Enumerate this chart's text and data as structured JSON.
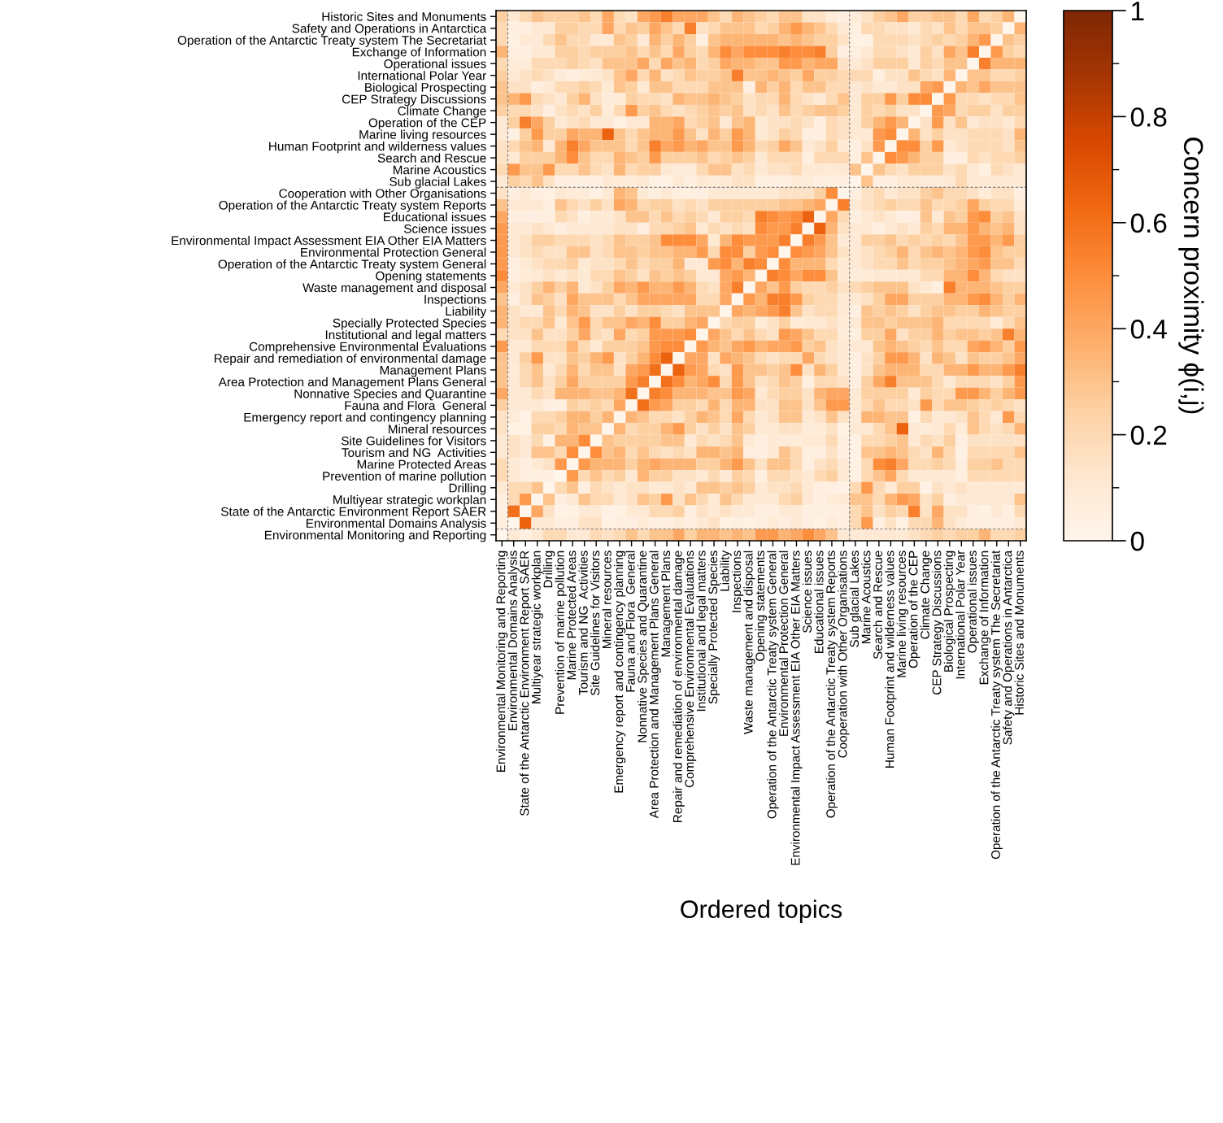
{
  "chart_data": {
    "type": "heatmap",
    "xlabel": "Ordered topics",
    "clabel": "Concern proximity ϕ(i,j)",
    "clim": [
      0,
      1
    ],
    "cticks": [
      0,
      0.2,
      0.4,
      0.6,
      0.8,
      1
    ],
    "y_categories": [
      "Historic Sites and Monuments",
      "Safety and Operations in Antarctica",
      "Operation of the Antarctic Treaty system The Secretariat",
      "Exchange of Information",
      "Operational issues",
      "International Polar Year",
      "Biological Prospecting",
      "CEP Strategy Discussions",
      "Climate Change",
      "Operation of the CEP",
      "Marine living resources",
      "Human Footprint and wilderness values",
      "Search and Rescue",
      "Marine Acoustics",
      "Sub glacial Lakes",
      "Cooperation with Other Organisations",
      "Operation of the Antarctic Treaty system Reports",
      "Educational issues",
      "Science issues",
      "Environmental Impact Assessment EIA Other EIA Matters",
      "Environmental Protection General",
      "Operation of the Antarctic Treaty system General",
      "Opening statements",
      "Waste management and disposal",
      "Inspections",
      "Liability",
      "Specially Protected Species",
      "Institutional and legal matters",
      "Comprehensive Environmental Evaluations",
      "Repair and remediation of environmental damage",
      "Management Plans",
      "Area Protection and Management Plans General",
      "Nonnative Species and Quarantine",
      "Fauna and Flora  General",
      "Emergency report and contingency planning",
      "Mineral resources",
      "Site Guidelines for Visitors",
      "Tourism and NG  Activities",
      "Marine Protected Areas",
      "Prevention of marine pollution",
      "Drilling",
      "Multiyear strategic workplan",
      "State of the Antarctic Environment Report SAER",
      "Environmental Domains Analysis",
      "Environmental Monitoring and Reporting"
    ],
    "categories": [
      "Environmental Monitoring and Reporting",
      "Environmental Domains Analysis",
      "State of the Antarctic Environment Report SAER",
      "Multiyear strategic workplan",
      "Drilling",
      "Prevention of marine pollution",
      "Marine Protected Areas",
      "Tourism and NG  Activities",
      "Site Guidelines for Visitors",
      "Mineral resources",
      "Emergency report and contingency planning",
      "Fauna and Flora  General",
      "Nonnative Species and Quarantine",
      "Area Protection and Management Plans General",
      "Management Plans",
      "Repair and remediation of environmental damage",
      "Comprehensive Environmental Evaluations",
      "Institutional and legal matters",
      "Specially Protected Species",
      "Liability",
      "Inspections",
      "Waste management and disposal",
      "Opening statements",
      "Operation of the Antarctic Treaty system General",
      "Environmental Protection General",
      "Environmental Impact Assessment EIA Other EIA Matters",
      "Science issues",
      "Educational issues",
      "Operation of the Antarctic Treaty system Reports",
      "Cooperation with Other Organisations",
      "Sub glacial Lakes",
      "Marine Acoustics",
      "Search and Rescue",
      "Human Footprint and wilderness values",
      "Marine living resources",
      "Operation of the CEP",
      "Climate Change",
      "CEP Strategy Discussions",
      "Biological Prospecting",
      "International Polar Year",
      "Operational issues",
      "Exchange of Information",
      "Operation of the Antarctic Treaty system The Secretariat",
      "Safety and Operations in Antarctica",
      "Historic Sites and Monuments"
    ],
    "cells": [
      [
        0.25,
        0.1,
        0.2,
        0.3,
        0.25,
        0.25,
        0.25,
        0.3,
        0.2,
        0.4,
        0.2,
        0.15,
        0.4,
        0.45,
        0.55,
        0.4,
        0.4,
        0.4,
        0.3,
        0.2,
        0.35,
        0.3,
        0.25,
        0.2,
        0.3,
        0.3,
        0.15,
        0.15,
        0.08,
        0.05,
        0.08,
        0.15,
        0.25,
        0.3,
        0.4,
        0.25,
        0.25,
        0.3,
        0.3,
        0.2,
        0.4,
        0.2,
        0.25,
        0.35,
        0
      ],
      [
        0.2,
        0.05,
        0.05,
        0.1,
        0.1,
        0.25,
        0.25,
        0.2,
        0.2,
        0.4,
        0.2,
        0.3,
        0.25,
        0.4,
        0.3,
        0.2,
        0.55,
        0.15,
        0.2,
        0.3,
        0.3,
        0.3,
        0.2,
        0.25,
        0.35,
        0.45,
        0.35,
        0.3,
        0.2,
        0.1,
        0.05,
        0.2,
        0.2,
        0.15,
        0.15,
        0.1,
        0.2,
        0.15,
        0.3,
        0.2,
        0.3,
        0.3,
        0.25,
        0,
        0.35
      ],
      [
        0.2,
        0.03,
        0.1,
        0.1,
        0.2,
        0.3,
        0.2,
        0.2,
        0.1,
        0.1,
        0.3,
        0.25,
        0.1,
        0.35,
        0.25,
        0.35,
        0.25,
        0.05,
        0.3,
        0.35,
        0.35,
        0.35,
        0.35,
        0.35,
        0.3,
        0.35,
        0.3,
        0.25,
        0.25,
        0.15,
        0.03,
        0.03,
        0.2,
        0.2,
        0.2,
        0.15,
        0.2,
        0.25,
        0.2,
        0.25,
        0.35,
        0.45,
        0,
        0.3,
        0.25
      ],
      [
        0.35,
        0.05,
        0.05,
        0.1,
        0.1,
        0.25,
        0.25,
        0.2,
        0.25,
        0.25,
        0.25,
        0.3,
        0.2,
        0.3,
        0.2,
        0.4,
        0.25,
        0.2,
        0.35,
        0.5,
        0.4,
        0.5,
        0.5,
        0.5,
        0.55,
        0.5,
        0.5,
        0.55,
        0.25,
        0.05,
        0.05,
        0.1,
        0.2,
        0.2,
        0.15,
        0.1,
        0.25,
        0.15,
        0.4,
        0.3,
        0.55,
        0,
        0.45,
        0.25,
        0.2
      ],
      [
        0.2,
        0.08,
        0.08,
        0.2,
        0.2,
        0.2,
        0.25,
        0.2,
        0.15,
        0.3,
        0.3,
        0.3,
        0.4,
        0.2,
        0.4,
        0.3,
        0.35,
        0.2,
        0.25,
        0.4,
        0.35,
        0.35,
        0.3,
        0.3,
        0.45,
        0.45,
        0.35,
        0.4,
        0.4,
        0.15,
        0.1,
        0.15,
        0.25,
        0.25,
        0.25,
        0.1,
        0.25,
        0.2,
        0.3,
        0.3,
        0,
        0.55,
        0.35,
        0.35,
        0.35
      ],
      [
        0.25,
        0.1,
        0.15,
        0.2,
        0.15,
        0.08,
        0.05,
        0.08,
        0.1,
        0.15,
        0.3,
        0.4,
        0.2,
        0.35,
        0.15,
        0.2,
        0.3,
        0.25,
        0.25,
        0.3,
        0.55,
        0.3,
        0.3,
        0.35,
        0.3,
        0.25,
        0.4,
        0.25,
        0.25,
        0.2,
        0.2,
        0.2,
        0.05,
        0.15,
        0.15,
        0.3,
        0.2,
        0.15,
        0.35,
        0,
        0.3,
        0.3,
        0.2,
        0.2,
        0.25
      ],
      [
        0.3,
        0.15,
        0.15,
        0.05,
        0.1,
        0.2,
        0.2,
        0.25,
        0.2,
        0.1,
        0.3,
        0.25,
        0.1,
        0.3,
        0.3,
        0.2,
        0.2,
        0.2,
        0.3,
        0.3,
        0.3,
        0.05,
        0.35,
        0.25,
        0.35,
        0.2,
        0.3,
        0.3,
        0.2,
        0.2,
        0.1,
        0.15,
        0.1,
        0.1,
        0.15,
        0.15,
        0.4,
        0.45,
        0,
        0.35,
        0.3,
        0.4,
        0.3,
        0.3,
        0.3
      ],
      [
        0.3,
        0.35,
        0.45,
        0.2,
        0.15,
        0.1,
        0.25,
        0.35,
        0.15,
        0.08,
        0.08,
        0.25,
        0.2,
        0.2,
        0.15,
        0.35,
        0.3,
        0.3,
        0.35,
        0.3,
        0.25,
        0.15,
        0.2,
        0.2,
        0.35,
        0.2,
        0.15,
        0.1,
        0.2,
        0.3,
        0.1,
        0.25,
        0.25,
        0.45,
        0.25,
        0.5,
        0.5,
        0,
        0.45,
        0.2,
        0.2,
        0.15,
        0.2,
        0.2,
        0.3
      ],
      [
        0.25,
        0.2,
        0.2,
        0.15,
        0.05,
        0.15,
        0.2,
        0.15,
        0.25,
        0.08,
        0.2,
        0.45,
        0.25,
        0.3,
        0.2,
        0.15,
        0.2,
        0.25,
        0.3,
        0.25,
        0.3,
        0.15,
        0.2,
        0.15,
        0.3,
        0.2,
        0.25,
        0.3,
        0.3,
        0.25,
        0.1,
        0.25,
        0.2,
        0.25,
        0.15,
        0.15,
        0,
        0.45,
        0.4,
        0.2,
        0.25,
        0.25,
        0.15,
        0.25,
        0.25
      ],
      [
        0.1,
        0.25,
        0.55,
        0.4,
        0.25,
        0.1,
        0.15,
        0.2,
        0.1,
        0.1,
        0.03,
        0.1,
        0.1,
        0.35,
        0.35,
        0.4,
        0.2,
        0.25,
        0.3,
        0.1,
        0.3,
        0.35,
        0.1,
        0.15,
        0.15,
        0.2,
        0.15,
        0.05,
        0.2,
        0.15,
        0.1,
        0.25,
        0.35,
        0.45,
        0.35,
        0,
        0.15,
        0.45,
        0.15,
        0.3,
        0.1,
        0.15,
        0.15,
        0.1,
        0.2
      ],
      [
        0.1,
        0.03,
        0.25,
        0.45,
        0.25,
        0.25,
        0.4,
        0.35,
        0.35,
        0.65,
        0.3,
        0.2,
        0.3,
        0.35,
        0.35,
        0.45,
        0.3,
        0.15,
        0.35,
        0.25,
        0.45,
        0.35,
        0.1,
        0.15,
        0.25,
        0.2,
        0.05,
        0.05,
        0.2,
        0.15,
        0.1,
        0.1,
        0.45,
        0.5,
        0,
        0.35,
        0.15,
        0.25,
        0.15,
        0.15,
        0.2,
        0.2,
        0.2,
        0.15,
        0.35
      ],
      [
        0.15,
        0.2,
        0.3,
        0.35,
        0.1,
        0.35,
        0.55,
        0.4,
        0.3,
        0.3,
        0.3,
        0.2,
        0.3,
        0.55,
        0.4,
        0.45,
        0.35,
        0.4,
        0.3,
        0.3,
        0.45,
        0.35,
        0.2,
        0.25,
        0.4,
        0.3,
        0.1,
        0.15,
        0.25,
        0.1,
        0.05,
        0.15,
        0.45,
        0,
        0.5,
        0.5,
        0.25,
        0.45,
        0.1,
        0.15,
        0.2,
        0.2,
        0.2,
        0.15,
        0.3
      ],
      [
        0.15,
        0.1,
        0.25,
        0.25,
        0.25,
        0.35,
        0.5,
        0.3,
        0.2,
        0.2,
        0.35,
        0.3,
        0.25,
        0.45,
        0.25,
        0.25,
        0.25,
        0.3,
        0.2,
        0.25,
        0.3,
        0.25,
        0.1,
        0.2,
        0.2,
        0.2,
        0.05,
        0.2,
        0.2,
        0.2,
        0.05,
        0.3,
        0,
        0.5,
        0.45,
        0.35,
        0.25,
        0.25,
        0.05,
        0.05,
        0.2,
        0.15,
        0.2,
        0.2,
        0.25
      ],
      [
        0.2,
        0.45,
        0.3,
        0.3,
        0.45,
        0.2,
        0.2,
        0.3,
        0.2,
        0.15,
        0.35,
        0.2,
        0.25,
        0.25,
        0.1,
        0.08,
        0.08,
        0.2,
        0.3,
        0.3,
        0.15,
        0.2,
        0.1,
        0.15,
        0.15,
        0.2,
        0.1,
        0.1,
        0.1,
        0.1,
        0.3,
        0,
        0.3,
        0.2,
        0.15,
        0.25,
        0.25,
        0.25,
        0.15,
        0.2,
        0.1,
        0.05,
        0.2,
        0.15,
        0.1
      ],
      [
        0.1,
        0.25,
        0.2,
        0.3,
        0.15,
        0.05,
        0.05,
        0.05,
        0.05,
        0.1,
        0.08,
        0.08,
        0.1,
        0.03,
        0.03,
        0.1,
        0.05,
        0.1,
        0.08,
        0.1,
        0.15,
        0.15,
        0.05,
        0.05,
        0.05,
        0.08,
        0.08,
        0.05,
        0.05,
        0.05,
        0,
        0.3,
        0.05,
        0.05,
        0.1,
        0.1,
        0.08,
        0.08,
        0.1,
        0.2,
        0.1,
        0.1,
        0.1,
        0.1,
        0.1
      ],
      [
        0.15,
        0.05,
        0.1,
        0.05,
        0.03,
        0.1,
        0.08,
        0.08,
        0.03,
        0.1,
        0.35,
        0.3,
        0.1,
        0.05,
        0.1,
        0.05,
        0.05,
        0.05,
        0.1,
        0.1,
        0.1,
        0.1,
        0.1,
        0.1,
        0.15,
        0.15,
        0.15,
        0.25,
        0.5,
        0,
        0.05,
        0.15,
        0.2,
        0.1,
        0.15,
        0.15,
        0.25,
        0.3,
        0.2,
        0.2,
        0.15,
        0.08,
        0.15,
        0.15,
        0.05
      ],
      [
        0.3,
        0.1,
        0.1,
        0.1,
        0.05,
        0.3,
        0.2,
        0.15,
        0.25,
        0.15,
        0.4,
        0.35,
        0.2,
        0.25,
        0.25,
        0.15,
        0.2,
        0.15,
        0.25,
        0.25,
        0.25,
        0.25,
        0.25,
        0.25,
        0.3,
        0.3,
        0.35,
        0.4,
        0,
        0.55,
        0.1,
        0.15,
        0.2,
        0.25,
        0.2,
        0.2,
        0.3,
        0.2,
        0.2,
        0.25,
        0.4,
        0.25,
        0.2,
        0.2,
        0.08
      ],
      [
        0.4,
        0.05,
        0.05,
        0.05,
        0.05,
        0.2,
        0.15,
        0.05,
        0.1,
        0.1,
        0.15,
        0.3,
        0.3,
        0.2,
        0.3,
        0.2,
        0.25,
        0.2,
        0.1,
        0.25,
        0.25,
        0.2,
        0.55,
        0.5,
        0.45,
        0.5,
        0.65,
        0,
        0.4,
        0.2,
        0.05,
        0.1,
        0.15,
        0.1,
        0.05,
        0.05,
        0.3,
        0.1,
        0.3,
        0.25,
        0.45,
        0.5,
        0.25,
        0.3,
        0.15
      ],
      [
        0.45,
        0.1,
        0.1,
        0.15,
        0.1,
        0.05,
        0.1,
        0.1,
        0.1,
        0.1,
        0.15,
        0.15,
        0.05,
        0.2,
        0.2,
        0.25,
        0.3,
        0.1,
        0.2,
        0.15,
        0.2,
        0.15,
        0.5,
        0.45,
        0.45,
        0.55,
        0,
        0.65,
        0.35,
        0.15,
        0.1,
        0.1,
        0.05,
        0.1,
        0.15,
        0.1,
        0.25,
        0.2,
        0.35,
        0.35,
        0.45,
        0.35,
        0.3,
        0.35,
        0.15
      ],
      [
        0.45,
        0.1,
        0.15,
        0.25,
        0.25,
        0.2,
        0.2,
        0.2,
        0.15,
        0.2,
        0.3,
        0.25,
        0.25,
        0.3,
        0.5,
        0.5,
        0.5,
        0.4,
        0.1,
        0.35,
        0.5,
        0.45,
        0.45,
        0.45,
        0.55,
        0,
        0.55,
        0.45,
        0.3,
        0.1,
        0.1,
        0.25,
        0.25,
        0.3,
        0.2,
        0.25,
        0.2,
        0.25,
        0.2,
        0.3,
        0.45,
        0.45,
        0.35,
        0.45,
        0.25
      ],
      [
        0.45,
        0.1,
        0.15,
        0.2,
        0.15,
        0.15,
        0.3,
        0.3,
        0.15,
        0.2,
        0.3,
        0.3,
        0.25,
        0.3,
        0.3,
        0.35,
        0.35,
        0.45,
        0.2,
        0.5,
        0.5,
        0.25,
        0.45,
        0.5,
        0,
        0.5,
        0.45,
        0.4,
        0.3,
        0.15,
        0.1,
        0.15,
        0.2,
        0.25,
        0.35,
        0.2,
        0.3,
        0.35,
        0.3,
        0.35,
        0.45,
        0.5,
        0.3,
        0.25,
        0.25
      ],
      [
        0.45,
        0.05,
        0.1,
        0.15,
        0.2,
        0.2,
        0.25,
        0.1,
        0.15,
        0.15,
        0.2,
        0.3,
        0.2,
        0.25,
        0.25,
        0.35,
        0.1,
        0.1,
        0.45,
        0.5,
        0.35,
        0.55,
        0.5,
        0,
        0.5,
        0.35,
        0.35,
        0.35,
        0.2,
        0.1,
        0.1,
        0.15,
        0.2,
        0.2,
        0.3,
        0.2,
        0.25,
        0.25,
        0.3,
        0.35,
        0.4,
        0.45,
        0.3,
        0.3,
        0.2
      ],
      [
        0.5,
        0.05,
        0.08,
        0.1,
        0.15,
        0.1,
        0.15,
        0.1,
        0.2,
        0.2,
        0.3,
        0.25,
        0.15,
        0.3,
        0.25,
        0.3,
        0.25,
        0.1,
        0.1,
        0.4,
        0.45,
        0.35,
        0,
        0.55,
        0.5,
        0.4,
        0.5,
        0.5,
        0.3,
        0.1,
        0.08,
        0.08,
        0.1,
        0.1,
        0.1,
        0.1,
        0.2,
        0.2,
        0.35,
        0.35,
        0.5,
        0.35,
        0.2,
        0.15,
        0.15
      ],
      [
        0.4,
        0.1,
        0.15,
        0.25,
        0.35,
        0.25,
        0.35,
        0.1,
        0.15,
        0.25,
        0.4,
        0.35,
        0.45,
        0.35,
        0.35,
        0.45,
        0.35,
        0.2,
        0.15,
        0.4,
        0.55,
        0,
        0.4,
        0.3,
        0.45,
        0.25,
        0.2,
        0.2,
        0.25,
        0.15,
        0.2,
        0.25,
        0.3,
        0.3,
        0.3,
        0.15,
        0.1,
        0.05,
        0.55,
        0.35,
        0.35,
        0.35,
        0.3,
        0.25,
        0.25
      ],
      [
        0.3,
        0.05,
        0.15,
        0.3,
        0.25,
        0.15,
        0.4,
        0.3,
        0.3,
        0.3,
        0.2,
        0.3,
        0.4,
        0.4,
        0.4,
        0.4,
        0.4,
        0.2,
        0.2,
        0.4,
        0,
        0.45,
        0.35,
        0.55,
        0.55,
        0.45,
        0.25,
        0.2,
        0.2,
        0.1,
        0.1,
        0.15,
        0.25,
        0.4,
        0.4,
        0.25,
        0.25,
        0.25,
        0.35,
        0.35,
        0.45,
        0.5,
        0.35,
        0.25,
        0.35
      ],
      [
        0.35,
        0.15,
        0.1,
        0.1,
        0.3,
        0.2,
        0.35,
        0.3,
        0.15,
        0.15,
        0.25,
        0.15,
        0.25,
        0.25,
        0.2,
        0.15,
        0.3,
        0.3,
        0.3,
        0,
        0.4,
        0.35,
        0.4,
        0.45,
        0.55,
        0.3,
        0.15,
        0.2,
        0.2,
        0.1,
        0.05,
        0.3,
        0.25,
        0.3,
        0.25,
        0.15,
        0.25,
        0.3,
        0.3,
        0.25,
        0.25,
        0.35,
        0.3,
        0.25,
        0.25
      ],
      [
        0.35,
        0.15,
        0.2,
        0.2,
        0.3,
        0.1,
        0.3,
        0.45,
        0.2,
        0.3,
        0.3,
        0.4,
        0.35,
        0.5,
        0.25,
        0.25,
        0.35,
        0.4,
        0,
        0.2,
        0.25,
        0.25,
        0.08,
        0.15,
        0.25,
        0.08,
        0.1,
        0.1,
        0.15,
        0.08,
        0.1,
        0.3,
        0.3,
        0.25,
        0.3,
        0.3,
        0.3,
        0.35,
        0.2,
        0.2,
        0.2,
        0.2,
        0.08,
        0.2,
        0.3
      ],
      [
        0.2,
        0.15,
        0.15,
        0.3,
        0.15,
        0.15,
        0.25,
        0.4,
        0.2,
        0.15,
        0.4,
        0.2,
        0.25,
        0.45,
        0.45,
        0.45,
        0.5,
        0,
        0.4,
        0.3,
        0.2,
        0.3,
        0.2,
        0.15,
        0.45,
        0.4,
        0.3,
        0.2,
        0.2,
        0.08,
        0.05,
        0.25,
        0.25,
        0.4,
        0.15,
        0.25,
        0.25,
        0.35,
        0.25,
        0.3,
        0.3,
        0.25,
        0.3,
        0.55,
        0.35
      ],
      [
        0.45,
        0.1,
        0.1,
        0.2,
        0.2,
        0.2,
        0.35,
        0.2,
        0.1,
        0.25,
        0.25,
        0.25,
        0.3,
        0.45,
        0.5,
        0.5,
        0,
        0.45,
        0.35,
        0.3,
        0.4,
        0.45,
        0.35,
        0.4,
        0.4,
        0.45,
        0.25,
        0.3,
        0.15,
        0.1,
        0.1,
        0.1,
        0.3,
        0.35,
        0.3,
        0.25,
        0.2,
        0.3,
        0.2,
        0.2,
        0.4,
        0.45,
        0.35,
        0.25,
        0.45
      ],
      [
        0.3,
        0.1,
        0.25,
        0.45,
        0.15,
        0.15,
        0.3,
        0.25,
        0.35,
        0.45,
        0.15,
        0.25,
        0.35,
        0.5,
        0.65,
        0,
        0.4,
        0.4,
        0.15,
        0.4,
        0.35,
        0.3,
        0.2,
        0.15,
        0.2,
        0.2,
        0.4,
        0.2,
        0.15,
        0.1,
        0.05,
        0.15,
        0.25,
        0.45,
        0.45,
        0.35,
        0.15,
        0.35,
        0.3,
        0.15,
        0.3,
        0.25,
        0.25,
        0.3,
        0.4
      ],
      [
        0.3,
        0.08,
        0.2,
        0.3,
        0.1,
        0.2,
        0.35,
        0.2,
        0.3,
        0.3,
        0.15,
        0.4,
        0.45,
        0.6,
        0,
        0.65,
        0.45,
        0.4,
        0.2,
        0.15,
        0.45,
        0.3,
        0.3,
        0.25,
        0.3,
        0.5,
        0.15,
        0.35,
        0.25,
        0.1,
        0.05,
        0.15,
        0.3,
        0.35,
        0.35,
        0.35,
        0.2,
        0.2,
        0.35,
        0.35,
        0.45,
        0.35,
        0.35,
        0.45,
        0.55
      ],
      [
        0.3,
        0.1,
        0.2,
        0.3,
        0.15,
        0.25,
        0.4,
        0.25,
        0.25,
        0.25,
        0.25,
        0.45,
        0.55,
        0,
        0.6,
        0.5,
        0.35,
        0.4,
        0.5,
        0.2,
        0.45,
        0.3,
        0.15,
        0.2,
        0.3,
        0.25,
        0.05,
        0.2,
        0.2,
        0.15,
        0.05,
        0.25,
        0.4,
        0.55,
        0.3,
        0.3,
        0.3,
        0.2,
        0.1,
        0.2,
        0.2,
        0.2,
        0.15,
        0.25,
        0.45
      ],
      [
        0.4,
        0.1,
        0.1,
        0.2,
        0.15,
        0.35,
        0.35,
        0.35,
        0.3,
        0.3,
        0.35,
        0.6,
        0,
        0.55,
        0.5,
        0.35,
        0.35,
        0.35,
        0.3,
        0.3,
        0.45,
        0.4,
        0.1,
        0.2,
        0.25,
        0.25,
        0.15,
        0.35,
        0.4,
        0.4,
        0.1,
        0.25,
        0.25,
        0.25,
        0.25,
        0.1,
        0.25,
        0.2,
        0.2,
        0.45,
        0.45,
        0.35,
        0.25,
        0.35,
        0.45
      ],
      [
        0.25,
        0.1,
        0.1,
        0.1,
        0.05,
        0.05,
        0.25,
        0.2,
        0.25,
        0.2,
        0.4,
        0,
        0.6,
        0.45,
        0.4,
        0.25,
        0.25,
        0.2,
        0.35,
        0.2,
        0.35,
        0.35,
        0.15,
        0.15,
        0.3,
        0.3,
        0.15,
        0.3,
        0.45,
        0.45,
        0.1,
        0.2,
        0.3,
        0.2,
        0.2,
        0.15,
        0.45,
        0.2,
        0.3,
        0.3,
        0.25,
        0.2,
        0.25,
        0.2,
        0.15
      ],
      [
        0.15,
        0.08,
        0.03,
        0.2,
        0.2,
        0.25,
        0.35,
        0.35,
        0.25,
        0.35,
        0,
        0.35,
        0.3,
        0.2,
        0.2,
        0.15,
        0.25,
        0.35,
        0.3,
        0.2,
        0.4,
        0.2,
        0.1,
        0.15,
        0.3,
        0.3,
        0.1,
        0.15,
        0.3,
        0.15,
        0.08,
        0.35,
        0.35,
        0.3,
        0.3,
        0.03,
        0.2,
        0.1,
        0.1,
        0.15,
        0.3,
        0.2,
        0.1,
        0.45,
        0.2
      ],
      [
        0.15,
        0.03,
        0.03,
        0.25,
        0.25,
        0.2,
        0.35,
        0.3,
        0.3,
        0,
        0.35,
        0.2,
        0.25,
        0.25,
        0.35,
        0.45,
        0.25,
        0.15,
        0.25,
        0.15,
        0.3,
        0.25,
        0.1,
        0.1,
        0.15,
        0.15,
        0.08,
        0.08,
        0.15,
        0.03,
        0.1,
        0.1,
        0.2,
        0.3,
        0.65,
        0.1,
        0.08,
        0.1,
        0.2,
        0.08,
        0.3,
        0.2,
        0.15,
        0.2,
        0.35
      ],
      [
        0.1,
        0.15,
        0.1,
        0.2,
        0.03,
        0.35,
        0.35,
        0.5,
        0,
        0.3,
        0.25,
        0.25,
        0.25,
        0.25,
        0.3,
        0.3,
        0.1,
        0.2,
        0.15,
        0.2,
        0.3,
        0.1,
        0.05,
        0.1,
        0.08,
        0.08,
        0.1,
        0.1,
        0.2,
        0.05,
        0.03,
        0.2,
        0.2,
        0.25,
        0.3,
        0.1,
        0.2,
        0.15,
        0.25,
        0.05,
        0.15,
        0.15,
        0.15,
        0.15,
        0.15
      ],
      [
        0.1,
        0.15,
        0.1,
        0.3,
        0.3,
        0.2,
        0.5,
        0,
        0.5,
        0.3,
        0.35,
        0.2,
        0.3,
        0.2,
        0.15,
        0.2,
        0.15,
        0.35,
        0.35,
        0.3,
        0.35,
        0.05,
        0.05,
        0.1,
        0.3,
        0.2,
        0.05,
        0.05,
        0.15,
        0.05,
        0.03,
        0.3,
        0.3,
        0.35,
        0.3,
        0.2,
        0.15,
        0.35,
        0.2,
        0.03,
        0.2,
        0.2,
        0.2,
        0.2,
        0.3
      ],
      [
        0.2,
        0.1,
        0.05,
        0.1,
        0.15,
        0.45,
        0,
        0.45,
        0.35,
        0.35,
        0.35,
        0.25,
        0.35,
        0.4,
        0.35,
        0.35,
        0.35,
        0.25,
        0.25,
        0.35,
        0.45,
        0.3,
        0.15,
        0.3,
        0.3,
        0.2,
        0.05,
        0.15,
        0.2,
        0.1,
        0.03,
        0.2,
        0.5,
        0.55,
        0.4,
        0.2,
        0.2,
        0.25,
        0.2,
        0.05,
        0.25,
        0.25,
        0.3,
        0.2,
        0.2
      ],
      [
        0.2,
        0.1,
        0.05,
        0.05,
        0.05,
        0,
        0.45,
        0.2,
        0.3,
        0.2,
        0.25,
        0.1,
        0.35,
        0.25,
        0.25,
        0.15,
        0.15,
        0.1,
        0.2,
        0.1,
        0.25,
        0.2,
        0.05,
        0.2,
        0.2,
        0.15,
        0.1,
        0.2,
        0.25,
        0.1,
        0.03,
        0.2,
        0.3,
        0.4,
        0.2,
        0.1,
        0.1,
        0.1,
        0.1,
        0.05,
        0.2,
        0.2,
        0.2,
        0.2,
        0.2
      ],
      [
        0.1,
        0.2,
        0.2,
        0.3,
        0,
        0.2,
        0.3,
        0.05,
        0.2,
        0.15,
        0.1,
        0.15,
        0.15,
        0.1,
        0.1,
        0.15,
        0.1,
        0.3,
        0.3,
        0.25,
        0.3,
        0.25,
        0.1,
        0.15,
        0.15,
        0.2,
        0.1,
        0.05,
        0.05,
        0.03,
        0.2,
        0.45,
        0.2,
        0.1,
        0.25,
        0.25,
        0.03,
        0.15,
        0.1,
        0.15,
        0.1,
        0.1,
        0.1,
        0.1,
        0.1
      ],
      [
        0.05,
        0.2,
        0.45,
        0,
        0.3,
        0.05,
        0.1,
        0.3,
        0.2,
        0.2,
        0.1,
        0.15,
        0.3,
        0.25,
        0.45,
        0.15,
        0.3,
        0.2,
        0.1,
        0.3,
        0.2,
        0.1,
        0.1,
        0.1,
        0.2,
        0.25,
        0.1,
        0.05,
        0.08,
        0.1,
        0.3,
        0.3,
        0.2,
        0.35,
        0.45,
        0.4,
        0.15,
        0.25,
        0.05,
        0.1,
        0.1,
        0.1,
        0.1,
        0.1,
        0.3
      ],
      [
        0.05,
        0.6,
        0,
        0.4,
        0.15,
        0.03,
        0.03,
        0.1,
        0.1,
        0.03,
        0.03,
        0.1,
        0.1,
        0.2,
        0.2,
        0.25,
        0.05,
        0.15,
        0.1,
        0.15,
        0.1,
        0.1,
        0.05,
        0.05,
        0.1,
        0.1,
        0.05,
        0.05,
        0.05,
        0.05,
        0.2,
        0.3,
        0.15,
        0.25,
        0.2,
        0.55,
        0.15,
        0.4,
        0.15,
        0.15,
        0.05,
        0.03,
        0.1,
        0.05,
        0.2
      ],
      [
        0.05,
        0,
        0.65,
        0.1,
        0.1,
        0.05,
        0.05,
        0.15,
        0.15,
        0.03,
        0.05,
        0.05,
        0.08,
        0.05,
        0.05,
        0.08,
        0.05,
        0.1,
        0.15,
        0.03,
        0.05,
        0.03,
        0.05,
        0.08,
        0.05,
        0.1,
        0.05,
        0.03,
        0.08,
        0.05,
        0.2,
        0.45,
        0.05,
        0.15,
        0.03,
        0.2,
        0.2,
        0.35,
        0.15,
        0.08,
        0.05,
        0.05,
        0.05,
        0.05,
        0.1
      ],
      [
        0,
        0.1,
        0.05,
        0.1,
        0.2,
        0.2,
        0.1,
        0.1,
        0.2,
        0.15,
        0.2,
        0.3,
        0.2,
        0.3,
        0.3,
        0.4,
        0.25,
        0.35,
        0.35,
        0.3,
        0.35,
        0.3,
        0.45,
        0.45,
        0.35,
        0.4,
        0.5,
        0.4,
        0.3,
        0.1,
        0.1,
        0.1,
        0.1,
        0.1,
        0.1,
        0.15,
        0.2,
        0.25,
        0.2,
        0.25,
        0.25,
        0.35,
        0.2,
        0.2,
        0.25
      ]
    ]
  }
}
